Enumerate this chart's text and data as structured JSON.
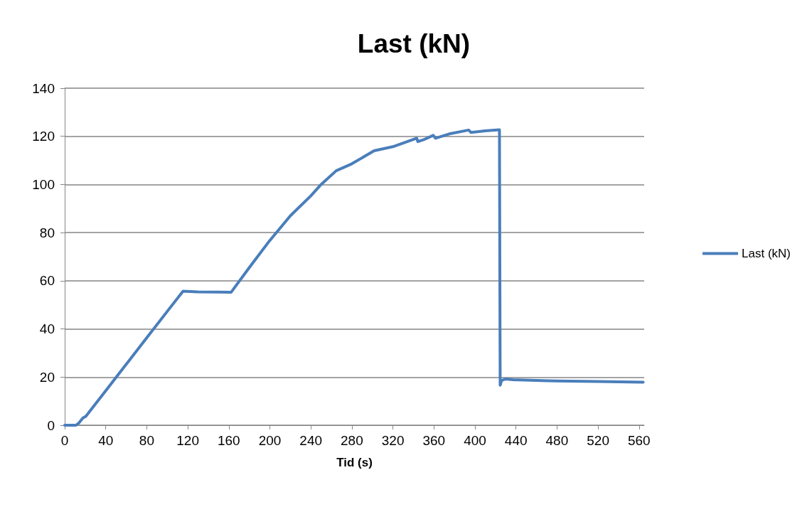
{
  "chart_data": {
    "type": "line",
    "title": "Last (kN)",
    "xlabel": "Tid (s)",
    "xlim": [
      0,
      565
    ],
    "xticks": [
      0,
      40,
      80,
      120,
      160,
      200,
      240,
      280,
      320,
      360,
      400,
      440,
      480,
      520,
      560
    ],
    "ylim": [
      0,
      140
    ],
    "yticks": [
      0,
      20,
      40,
      60,
      80,
      100,
      120,
      140
    ],
    "grid": "y",
    "legend": "right",
    "marker": "none",
    "line_style": "solid",
    "series": [
      {
        "name": "Last (kN)",
        "color": "#4a7ebb",
        "x": [
          0,
          11,
          14,
          17.8,
          20.6,
          40,
          60,
          80,
          100,
          115.4,
          130,
          150,
          162.2,
          180,
          199.7,
          220,
          240,
          250,
          264.7,
          280,
          301.7,
          320,
          343.2,
          344.3,
          350,
          359.3,
          361.6,
          375,
          393.9,
          396.2,
          410,
          423.9,
          424.3,
          424.6,
          426,
          429.7,
          437,
          460,
          480,
          520,
          564
        ],
        "values": [
          0,
          0,
          1,
          3,
          3.7,
          14.3,
          25.3,
          36.3,
          47.3,
          55.7,
          55.4,
          55.3,
          55.2,
          65.5,
          76.6,
          87,
          95.3,
          100,
          105.7,
          108.6,
          114,
          115.7,
          119.2,
          117.8,
          118.6,
          120.4,
          119.2,
          121,
          122.6,
          121.6,
          122.3,
          122.7,
          60,
          16.6,
          18.6,
          19.2,
          18.9,
          18.6,
          18.4,
          18.2,
          17.9
        ]
      }
    ]
  }
}
